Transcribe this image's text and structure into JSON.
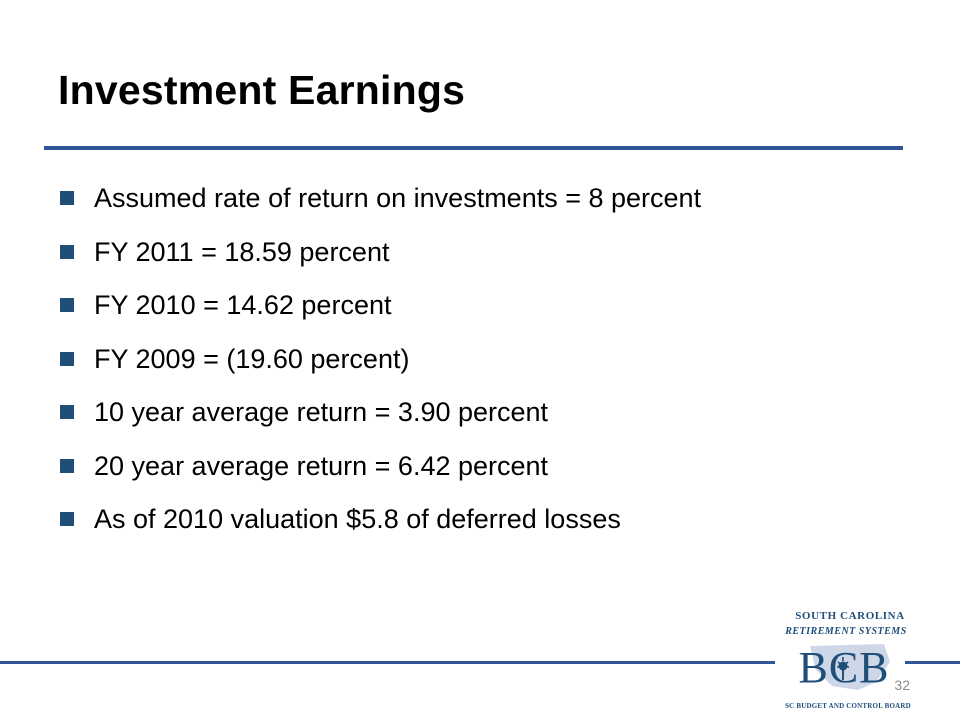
{
  "slide": {
    "title": "Investment Earnings",
    "page_number": "32",
    "bullets": [
      {
        "text": "Assumed rate of return on investments = 8 percent"
      },
      {
        "text": "FY 2011 = 18.59 percent"
      },
      {
        "text": "FY 2010 = 14.62 percent"
      },
      {
        "text": "FY 2009 = (19.60 percent)"
      },
      {
        "text": "10 year average return = 3.90 percent"
      },
      {
        "text": "20 year average return = 6.42 percent"
      },
      {
        "text": "As of 2010 valuation $5.8 of deferred losses"
      }
    ]
  },
  "logo": {
    "line1": "SOUTH CAROLINA",
    "line2": "RETIREMENT SYSTEMS",
    "mark": "BCB",
    "tagline": "SC BUDGET AND CONTROL BOARD",
    "icon": "palmetto-tree-icon"
  },
  "colors": {
    "accent": "#2f5597",
    "bullet": "#1f4e79",
    "logo_text": "#1f4e79",
    "logo_state": "#c8d3e6"
  }
}
